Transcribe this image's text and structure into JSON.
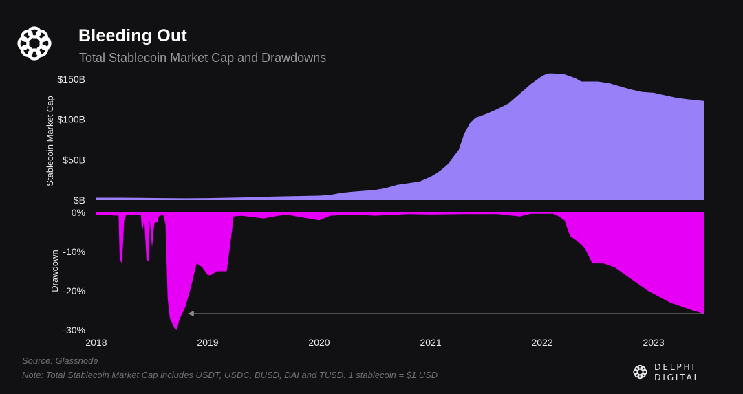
{
  "header": {
    "title": "Bleeding Out",
    "subtitle": "Total Stablecoin Market Cap and Drawdowns",
    "logo_icon": "delphi-knot-icon"
  },
  "footer": {
    "source": "Source: Glassnode",
    "note": "Note: Total Stablecoin Market Cap includes USDT, USDC, BUSD, DAI and TUSD. 1 stablecoin = $1 USD",
    "brand": "DELPHI DIGITAL"
  },
  "colors": {
    "background": "#111113",
    "market_cap_fill": "#9880f8",
    "drawdown_fill": "#e600f5",
    "arrow": "#8a8a8a",
    "text": "#e8e8e8"
  },
  "chart_data": [
    {
      "type": "area",
      "title": "Total Stablecoin Market Cap",
      "ylabel": "Stablecoin Market Cap",
      "xlabel": "",
      "xlim": [
        2018.0,
        2023.45
      ],
      "ylim": [
        0,
        150
      ],
      "y_unit": "$B",
      "yticks": [
        {
          "value": 0,
          "label": "$B"
        },
        {
          "value": 50,
          "label": "$50B"
        },
        {
          "value": 100,
          "label": "$100B"
        },
        {
          "value": 150,
          "label": "$150B"
        }
      ],
      "grid": false,
      "series": [
        {
          "name": "Stablecoin Market Cap",
          "x": [
            2018.0,
            2018.2,
            2018.4,
            2018.6,
            2018.8,
            2019.0,
            2019.2,
            2019.4,
            2019.6,
            2019.8,
            2020.0,
            2020.1,
            2020.2,
            2020.3,
            2020.4,
            2020.5,
            2020.6,
            2020.7,
            2020.8,
            2020.9,
            2021.0,
            2021.05,
            2021.1,
            2021.15,
            2021.2,
            2021.25,
            2021.3,
            2021.35,
            2021.4,
            2021.5,
            2021.6,
            2021.7,
            2021.8,
            2021.9,
            2022.0,
            2022.05,
            2022.1,
            2022.2,
            2022.3,
            2022.35,
            2022.4,
            2022.5,
            2022.6,
            2022.7,
            2022.8,
            2022.9,
            2023.0,
            2023.1,
            2023.2,
            2023.3,
            2023.45
          ],
          "values": [
            3,
            3,
            2.8,
            2.5,
            2.2,
            2.5,
            3,
            3.5,
            4.5,
            5,
            5.5,
            6.5,
            9,
            10.5,
            11.5,
            12.5,
            15,
            19,
            21,
            23,
            29,
            33,
            38,
            44,
            53,
            62,
            82,
            95,
            102,
            107,
            113,
            120,
            132,
            144,
            154,
            157,
            157,
            156,
            151,
            147,
            147,
            147,
            145,
            141,
            137,
            134,
            133,
            130,
            127,
            125,
            123
          ]
        }
      ]
    },
    {
      "type": "area",
      "title": "Drawdown",
      "ylabel": "Drawdown",
      "xlabel": "",
      "xlim": [
        2018.0,
        2023.45
      ],
      "ylim": [
        -30,
        0
      ],
      "y_unit": "%",
      "yticks": [
        {
          "value": 0,
          "label": "0%"
        },
        {
          "value": -10,
          "label": "-10%"
        },
        {
          "value": -20,
          "label": "-20%"
        },
        {
          "value": -30,
          "label": "-30%"
        }
      ],
      "xticks": [
        {
          "value": 2018,
          "label": "2018"
        },
        {
          "value": 2019,
          "label": "2019"
        },
        {
          "value": 2020,
          "label": "2020"
        },
        {
          "value": 2021,
          "label": "2021"
        },
        {
          "value": 2022,
          "label": "2022"
        },
        {
          "value": 2023,
          "label": "2023"
        }
      ],
      "grid": false,
      "series": [
        {
          "name": "Drawdown",
          "x": [
            2018.0,
            2018.2,
            2018.21,
            2018.23,
            2018.25,
            2018.27,
            2018.4,
            2018.41,
            2018.43,
            2018.45,
            2018.47,
            2018.48,
            2018.5,
            2018.52,
            2018.53,
            2018.55,
            2018.56,
            2018.6,
            2018.62,
            2018.64,
            2018.66,
            2018.7,
            2018.72,
            2018.75,
            2018.8,
            2018.85,
            2018.9,
            2018.95,
            2019.0,
            2019.03,
            2019.08,
            2019.12,
            2019.17,
            2019.22,
            2019.23,
            2019.3,
            2019.5,
            2019.7,
            2019.9,
            2020.0,
            2020.1,
            2020.3,
            2020.5,
            2020.8,
            2021.0,
            2021.3,
            2021.6,
            2021.8,
            2021.9,
            2022.0,
            2022.1,
            2022.15,
            2022.2,
            2022.25,
            2022.3,
            2022.38,
            2022.45,
            2022.55,
            2022.65,
            2022.75,
            2022.85,
            2022.95,
            2023.05,
            2023.15,
            2023.25,
            2023.35,
            2023.45
          ],
          "values": [
            -0.5,
            -0.8,
            -12,
            -13,
            -2,
            -0.5,
            -0.6,
            -5,
            -2,
            -12,
            -12.5,
            -2,
            -9,
            -3,
            -2.5,
            -2.5,
            -1,
            -0.5,
            -3,
            -22,
            -27,
            -29.5,
            -30,
            -27,
            -24,
            -19,
            -13,
            -14,
            -16,
            -16,
            -15,
            -15,
            -15,
            -4,
            -1,
            -0.8,
            -1.5,
            -0.5,
            -1.5,
            -2,
            -0.8,
            -0.5,
            -0.8,
            -0.4,
            -0.5,
            -0.4,
            -0.4,
            -1,
            -0.3,
            -0.1,
            -0.3,
            -1,
            -2,
            -6,
            -7,
            -9,
            -13,
            -13,
            -14,
            -16,
            -18,
            -20,
            -21.5,
            -23,
            -24,
            -25,
            -25.8
          ]
        }
      ],
      "annotation": {
        "type": "arrow",
        "description": "horizontal arrow at current drawdown level pointing back to the 2018 low",
        "y": -25.8,
        "x_from": 2023.45,
        "x_to": 2018.82
      }
    }
  ]
}
